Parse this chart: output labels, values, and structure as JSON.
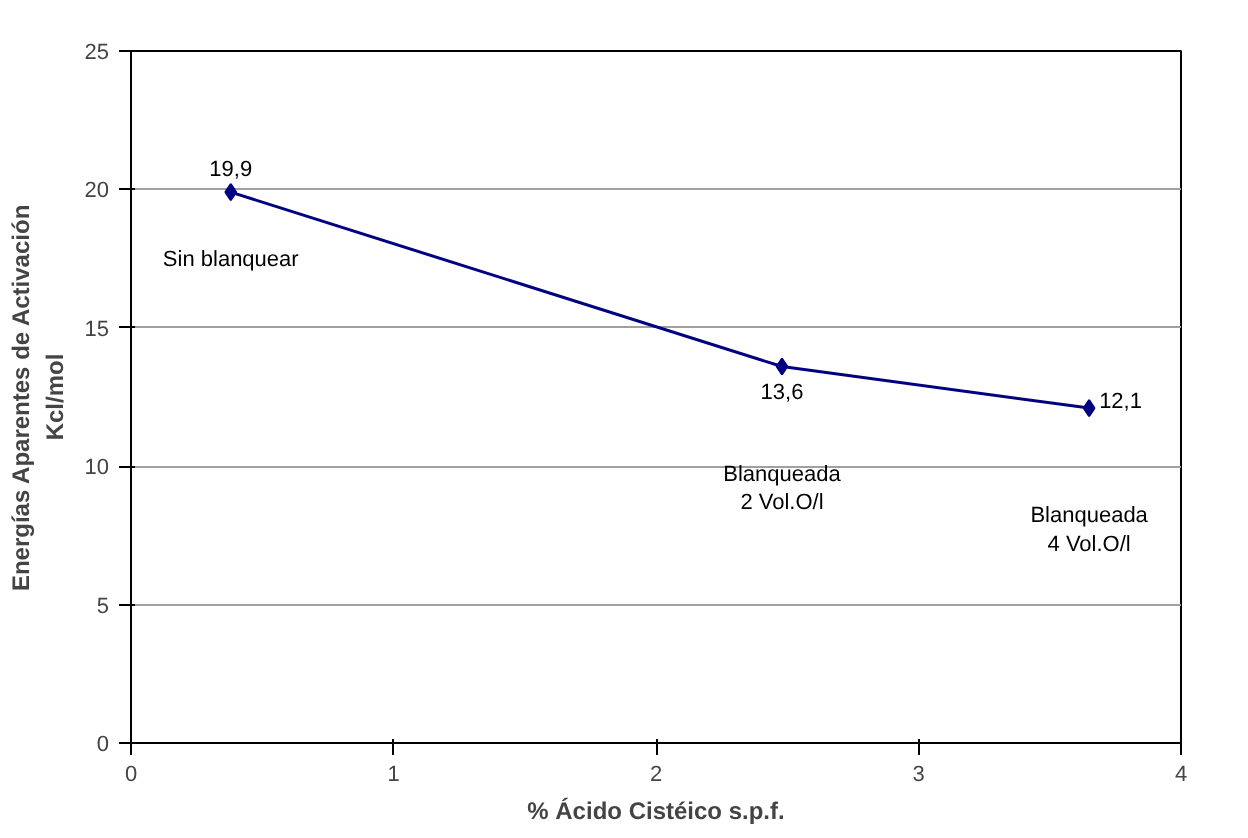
{
  "chart_data": {
    "type": "line",
    "xlabel": "% Ácido Cistéico s.p.f.",
    "ylabel": "Energías Aparentes de Activación\nKcl/mol",
    "x": [
      0.38,
      2.48,
      3.65
    ],
    "series": [
      {
        "color": "#000080",
        "values": [
          19.9,
          13.6,
          12.1
        ],
        "value_labels": [
          "19,9",
          "13,6",
          "12,1"
        ]
      }
    ],
    "marker": "diamond",
    "grid": "y",
    "xlim": [
      0,
      4
    ],
    "ylim": [
      0,
      25
    ],
    "xticks": [
      0,
      1,
      2,
      3,
      4
    ],
    "yticks": [
      0,
      5,
      10,
      15,
      20,
      25
    ],
    "annotations": [
      "Sin blanquear",
      "Blanqueada\n2 Vol.O/l",
      "Blanqueada\n4 Vol.O/l"
    ]
  }
}
